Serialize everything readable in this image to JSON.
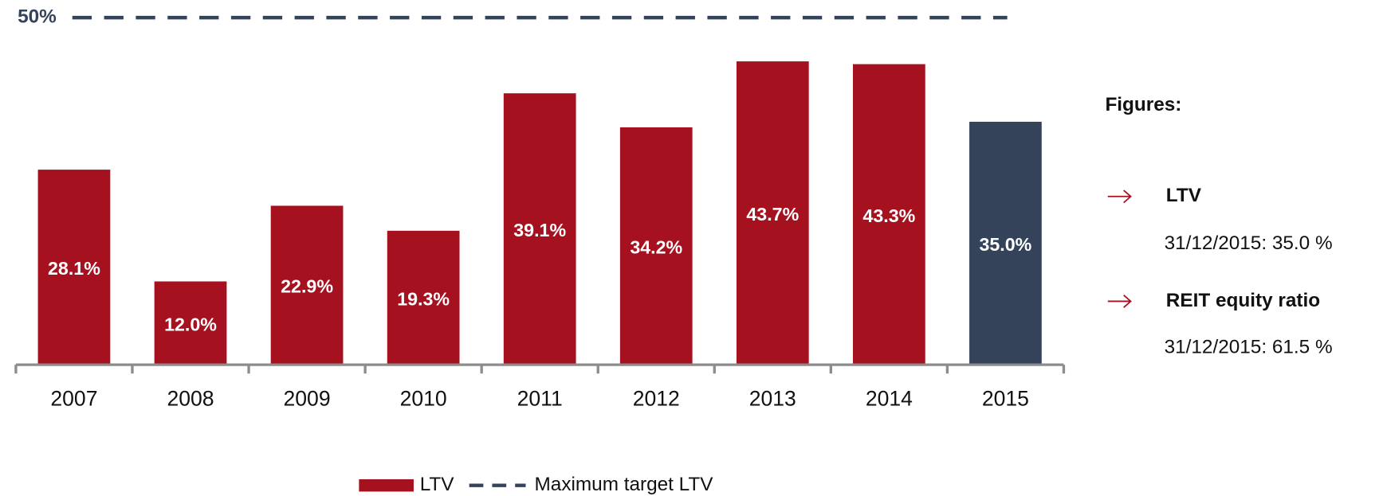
{
  "chart_data": {
    "type": "bar",
    "categories": [
      "2007",
      "2008",
      "2009",
      "2010",
      "2011",
      "2012",
      "2013",
      "2014",
      "2015"
    ],
    "series": [
      {
        "name": "LTV",
        "color": "#a6111f",
        "point_colors": [
          "#a6111f",
          "#a6111f",
          "#a6111f",
          "#a6111f",
          "#a6111f",
          "#a6111f",
          "#a6111f",
          "#a6111f",
          "#34435a"
        ],
        "values": [
          28.1,
          12.0,
          22.9,
          19.3,
          39.1,
          34.2,
          43.7,
          43.3,
          35.0
        ],
        "value_labels": [
          "28.1%",
          "12.0%",
          "22.9%",
          "19.3%",
          "39.1%",
          "34.2%",
          "43.7%",
          "43.3%",
          "35.0%"
        ]
      }
    ],
    "target": {
      "name": "Maximum target LTV",
      "value": 50,
      "label": "50%",
      "color": "#34435a"
    },
    "ylim": [
      0,
      50
    ],
    "panel": {
      "title": "Figures:",
      "items": [
        {
          "title": "LTV",
          "text": "31/12/2015: 35.0 %"
        },
        {
          "title": "REIT equity ratio",
          "text": "31/12/2015: 61.5 %"
        }
      ]
    }
  }
}
